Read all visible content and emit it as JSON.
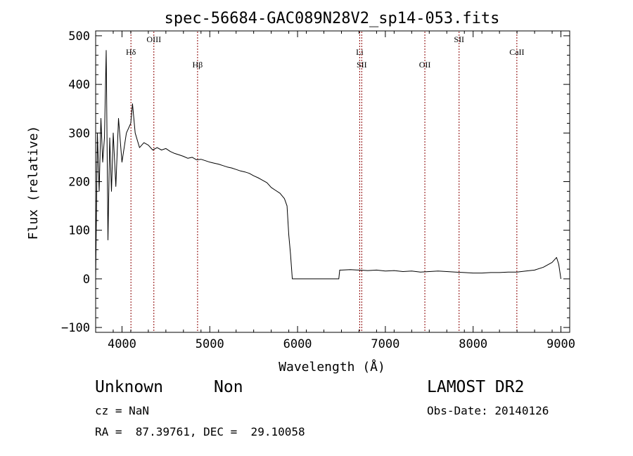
{
  "chart_data": {
    "type": "line",
    "title": "spec-56684-GAC089N28V2_sp14-053.fits",
    "xlabel": "Wavelength (Å)",
    "ylabel": "Flux (relative)",
    "xlim": [
      3700,
      9100
    ],
    "ylim": [
      -110,
      510
    ],
    "x_ticks": [
      4000,
      5000,
      6000,
      7000,
      8000,
      9000
    ],
    "y_ticks": [
      -100,
      0,
      100,
      200,
      300,
      400,
      500
    ],
    "x_tick_labels": [
      "4000",
      "5000",
      "6000",
      "7000",
      "8000",
      "9000"
    ],
    "y_tick_labels": [
      "−100",
      "0",
      "100",
      "200",
      "300",
      "400",
      "500"
    ],
    "grid": false,
    "line_color": "#000000",
    "marker_color": "#8b0000",
    "spectral_lines": [
      {
        "label": "Hδ",
        "x": 4102,
        "row": 2
      },
      {
        "label": "OIII",
        "x": 4363,
        "row": 1
      },
      {
        "label": "Hβ",
        "x": 4861,
        "row": 3
      },
      {
        "label": "Li",
        "x": 6708,
        "row": 2
      },
      {
        "label": "SII",
        "x": 6731,
        "row": 3
      },
      {
        "label": "OII",
        "x": 7450,
        "row": 3
      },
      {
        "label": "SII",
        "x": 7840,
        "row": 1
      },
      {
        "label": "CaII",
        "x": 8498,
        "row": 2
      }
    ],
    "series": [
      {
        "x": [
          3700,
          3720,
          3740,
          3760,
          3780,
          3800,
          3820,
          3840,
          3860,
          3880,
          3900,
          3930,
          3960,
          4000,
          4050,
          4100,
          4120,
          4150,
          4200,
          4250,
          4300,
          4350,
          4400,
          4450,
          4500,
          4550,
          4600,
          4650,
          4700,
          4750,
          4800,
          4850,
          4900,
          4950,
          5000,
          5050,
          5100,
          5150,
          5200,
          5250,
          5300,
          5350,
          5400,
          5450,
          5500,
          5550,
          5600,
          5650,
          5700,
          5750,
          5800,
          5850,
          5880,
          5900,
          5920,
          5940,
          6000,
          6200,
          6400,
          6470,
          6480,
          6500,
          6600,
          6700,
          6800,
          6900,
          7000,
          7100,
          7200,
          7300,
          7400,
          7500,
          7600,
          7700,
          7800,
          7900,
          8000,
          8100,
          8200,
          8300,
          8400,
          8500,
          8600,
          8700,
          8800,
          8900,
          8950,
          8975,
          9000
        ],
        "y": [
          0,
          300,
          180,
          330,
          240,
          290,
          470,
          80,
          290,
          180,
          300,
          190,
          330,
          240,
          300,
          320,
          360,
          300,
          270,
          280,
          275,
          265,
          270,
          265,
          268,
          262,
          258,
          255,
          252,
          248,
          250,
          245,
          246,
          243,
          240,
          238,
          236,
          233,
          230,
          228,
          225,
          222,
          220,
          217,
          212,
          208,
          203,
          198,
          188,
          182,
          176,
          165,
          150,
          90,
          50,
          0,
          0,
          0,
          0,
          0,
          18,
          18,
          19,
          18,
          17,
          18,
          16,
          17,
          15,
          16,
          14,
          15,
          16,
          15,
          14,
          13,
          12,
          12,
          13,
          13,
          14,
          14,
          16,
          18,
          24,
          34,
          44,
          30,
          0
        ]
      }
    ]
  },
  "footer": {
    "object_class": "Unknown",
    "object_subclass": "Non",
    "survey": "LAMOST DR2",
    "redshift": "cz = NaN",
    "obs_date": "Obs-Date: 20140126",
    "coords": "RA =  87.39761, DEC =  29.10058"
  }
}
